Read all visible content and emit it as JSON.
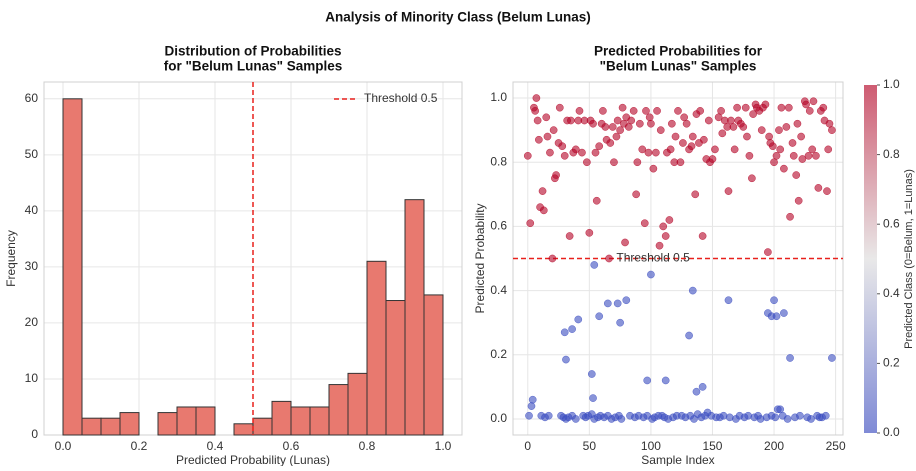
{
  "title": "Analysis of Minority Class (Belum Lunas)",
  "chart_data": [
    {
      "type": "histogram",
      "title": [
        "Distribution of Probabilities",
        "for \"Belum Lunas\" Samples"
      ],
      "x_label": "Predicted Probability (Lunas)",
      "y_label": "Frequency",
      "bins": [
        0,
        0.05,
        0.1,
        0.15,
        0.2,
        0.25,
        0.3,
        0.35,
        0.4,
        0.45,
        0.5,
        0.55,
        0.6,
        0.65,
        0.7,
        0.75,
        0.8,
        0.85,
        0.9,
        0.95,
        1.0
      ],
      "values": [
        60,
        3,
        3,
        4,
        0,
        4,
        5,
        5,
        0,
        2,
        3,
        6,
        5,
        5,
        9,
        11,
        31,
        24,
        42,
        25
      ],
      "color": "#e8796f",
      "edge_color": "#333333",
      "xlim": [
        -0.05,
        1.05
      ],
      "ylim": [
        0,
        63
      ],
      "xticks": [
        {
          "value": 0,
          "label": "0.0"
        },
        {
          "value": 0.2,
          "label": "0.2"
        },
        {
          "value": 0.4,
          "label": "0.4"
        },
        {
          "value": 0.6,
          "label": "0.6"
        },
        {
          "value": 0.8,
          "label": "0.8"
        },
        {
          "value": 1.0,
          "label": "1.0"
        }
      ],
      "yticks": [
        0,
        10,
        20,
        30,
        40,
        50,
        60
      ],
      "grid": true,
      "threshold": {
        "value": 0.5,
        "label": "Threshold 0.5",
        "color": "#e8211c"
      },
      "legend": "upper right"
    },
    {
      "type": "scatter",
      "title": [
        "Predicted Probabilities for",
        "\"Belum Lunas\" Samples"
      ],
      "x_label": "Sample Index",
      "y_label": "Predicted Probability",
      "x": [
        0,
        2,
        5,
        6,
        7,
        8,
        9,
        10,
        12,
        13,
        15,
        16,
        18,
        20,
        21,
        22,
        23,
        25,
        26,
        28,
        30,
        32,
        34,
        35,
        37,
        39,
        41,
        42,
        44,
        46,
        48,
        50,
        51,
        53,
        55,
        56,
        58,
        60,
        61,
        63,
        64,
        66,
        67,
        69,
        70,
        72,
        73,
        75,
        77,
        78,
        79,
        80,
        82,
        84,
        86,
        88,
        89,
        91,
        93,
        95,
        96,
        98,
        99,
        100,
        102,
        104,
        105,
        107,
        108,
        110,
        112,
        113,
        115,
        116,
        117,
        119,
        120,
        122,
        124,
        126,
        127,
        129,
        131,
        133,
        134,
        136,
        137,
        139,
        140,
        142,
        143,
        145,
        147,
        148,
        150,
        152,
        155,
        157,
        158,
        160,
        162,
        163,
        165,
        167,
        168,
        170,
        171,
        173,
        175,
        177,
        178,
        180,
        182,
        183,
        185,
        186,
        188,
        190,
        191,
        193,
        195,
        196,
        197,
        199,
        200,
        202,
        204,
        205,
        206,
        208,
        210,
        212,
        213,
        215,
        216,
        218,
        219,
        220,
        222,
        223,
        225,
        226,
        228,
        229,
        231,
        232,
        234,
        236,
        238,
        240,
        241,
        243,
        244,
        245,
        247,
        1,
        3,
        4,
        27,
        11,
        14,
        17,
        29,
        31,
        33,
        36,
        39,
        45,
        47,
        49,
        52,
        54,
        57,
        59,
        62,
        65,
        68,
        71,
        74,
        76,
        83,
        87,
        90,
        94,
        97,
        101,
        103,
        106,
        109,
        111,
        114,
        118,
        121,
        125,
        128,
        132,
        135,
        138,
        141,
        144,
        146,
        149,
        153,
        156,
        159,
        164,
        169,
        172,
        176,
        179,
        184,
        187,
        189,
        194,
        198,
        201,
        203,
        207,
        211,
        217,
        221,
        227,
        230,
        235,
        237,
        239,
        242,
        30,
        31,
        36,
        41,
        52,
        53,
        54,
        58,
        65,
        73,
        75,
        80,
        97,
        100,
        112,
        131,
        134,
        137,
        142,
        163,
        195,
        198,
        200,
        202,
        205,
        208,
        213,
        247
      ],
      "values": [
        0.82,
        0.61,
        0.97,
        0.96,
        1.0,
        0.93,
        0.87,
        0.66,
        0.71,
        0.65,
        0.94,
        0.88,
        0.83,
        0.5,
        0.9,
        0.75,
        0.76,
        0.86,
        0.97,
        0.85,
        0.82,
        0.93,
        0.57,
        0.93,
        0.83,
        0.84,
        0.93,
        0.96,
        0.83,
        0.93,
        0.8,
        0.58,
        0.93,
        0.92,
        0.83,
        0.68,
        0.85,
        0.92,
        0.96,
        0.91,
        0.87,
        0.5,
        0.86,
        0.91,
        0.8,
        0.88,
        0.93,
        0.9,
        0.97,
        0.92,
        0.55,
        0.94,
        0.91,
        0.93,
        0.96,
        0.7,
        0.8,
        0.92,
        0.84,
        0.61,
        0.96,
        0.83,
        0.94,
        0.92,
        0.78,
        0.83,
        0.96,
        0.54,
        0.9,
        0.6,
        0.57,
        0.83,
        0.62,
        0.84,
        0.92,
        0.8,
        0.88,
        0.96,
        0.8,
        0.86,
        0.94,
        0.92,
        0.84,
        0.85,
        0.88,
        0.7,
        0.95,
        0.86,
        0.96,
        0.57,
        0.87,
        0.81,
        0.93,
        0.8,
        0.81,
        0.84,
        0.94,
        0.96,
        0.89,
        0.93,
        0.91,
        0.71,
        0.93,
        0.91,
        0.84,
        0.97,
        0.93,
        0.92,
        0.91,
        0.97,
        0.88,
        0.82,
        0.75,
        0.95,
        0.98,
        0.97,
        0.96,
        0.9,
        0.97,
        0.98,
        0.52,
        0.88,
        0.86,
        0.85,
        0.8,
        0.82,
        0.9,
        0.84,
        0.97,
        0.78,
        0.91,
        0.97,
        0.63,
        0.86,
        0.82,
        0.76,
        0.92,
        0.68,
        0.88,
        0.81,
        0.99,
        0.98,
        0.82,
        0.96,
        0.84,
        0.99,
        0.82,
        0.72,
        0.96,
        0.97,
        0.93,
        0.71,
        0.84,
        0.92,
        0.9,
        0.01,
        0.04,
        0.06,
        0.01,
        0.01,
        0.005,
        0.01,
        0.005,
        0.0,
        0.005,
        0.01,
        0.0,
        0.01,
        0.005,
        0.01,
        0.015,
        0.0,
        0.005,
        0.01,
        0.005,
        0.01,
        0.0,
        0.005,
        0.01,
        0.0,
        0.01,
        0.005,
        0.01,
        0.005,
        0.01,
        0.0,
        0.005,
        0.01,
        0.01,
        0.005,
        0.0,
        0.005,
        0.01,
        0.01,
        0.005,
        0.01,
        0.0,
        0.015,
        0.005,
        0.01,
        0.02,
        0.01,
        0.005,
        0.005,
        0.01,
        0.005,
        0.0,
        0.01,
        0.005,
        0.01,
        0.005,
        0.01,
        0.0,
        0.005,
        0.01,
        0.005,
        0.03,
        0.01,
        0.0,
        0.005,
        0.01,
        0.005,
        0.0,
        0.01,
        0.005,
        0.005,
        0.01,
        0.27,
        0.185,
        0.28,
        0.31,
        0.14,
        0.065,
        0.48,
        0.32,
        0.36,
        0.36,
        0.3,
        0.37,
        0.12,
        0.45,
        0.12,
        0.26,
        0.4,
        0.085,
        0.1,
        0.37,
        0.33,
        0.32,
        0.37,
        0.32,
        0.03,
        0.33,
        0.19,
        0.19
      ],
      "xlim": [
        -12,
        256
      ],
      "ylim": [
        -0.05,
        1.05
      ],
      "xticks": [
        0,
        50,
        100,
        150,
        200,
        250
      ],
      "yticks": [
        {
          "value": 0,
          "label": "0.0"
        },
        {
          "value": 0.2,
          "label": "0.2"
        },
        {
          "value": 0.4,
          "label": "0.4"
        },
        {
          "value": 0.6,
          "label": "0.6"
        },
        {
          "value": 0.8,
          "label": "0.8"
        },
        {
          "value": 1.0,
          "label": "1.0"
        }
      ],
      "grid": true,
      "threshold": {
        "value": 0.5,
        "label": "Threshold 0.5",
        "color": "#e8211c",
        "label_x": 72
      },
      "colorbar": {
        "label": "Predicted Class (0=Belum, 1=Lunas)",
        "lim": [
          0,
          1
        ],
        "colors": [
          "#3b4cc0",
          "#dddcdc",
          "#b40426"
        ],
        "ticks": [
          {
            "value": 0,
            "label": "0.0"
          },
          {
            "value": 0.2,
            "label": "0.2"
          },
          {
            "value": 0.4,
            "label": "0.4"
          },
          {
            "value": 0.6,
            "label": "0.6"
          },
          {
            "value": 0.8,
            "label": "0.8"
          },
          {
            "value": 1.0,
            "label": "1.0"
          }
        ]
      }
    }
  ]
}
